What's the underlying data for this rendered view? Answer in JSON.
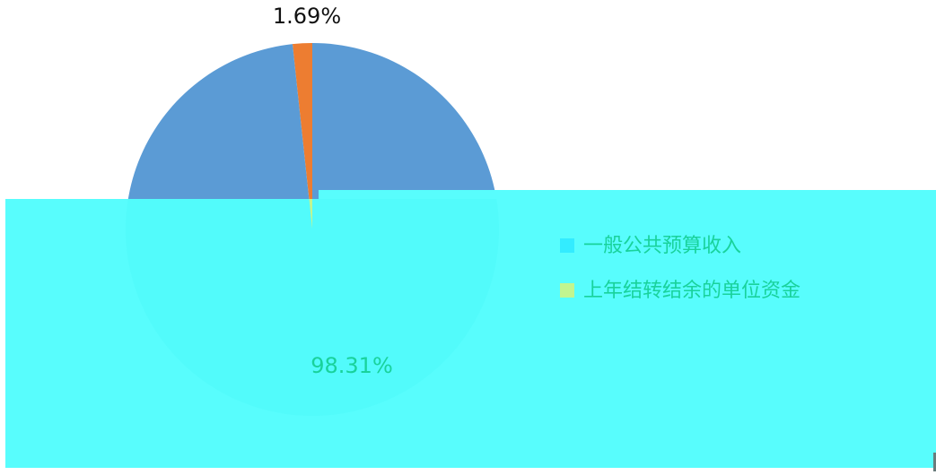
{
  "chart_data": {
    "type": "pie",
    "slices": [
      {
        "name": "一般公共预算收入",
        "value": 98.31,
        "label": "98.31%",
        "color": "#5b9bd5",
        "masked_color": "#4ff9f9"
      },
      {
        "name": "上年结转结余的单位资金",
        "value": 1.69,
        "label": "1.69%",
        "color": "#ed7d31",
        "masked_color": "#c2f58f"
      }
    ],
    "legend": [
      {
        "label": "一般公共预算收入",
        "color": "#33ecff"
      },
      {
        "label": "上年结转结余的单位资金",
        "color": "#c2f58f"
      }
    ],
    "legend_text_color": "#19d29b",
    "legend_position": "right"
  },
  "overlay": {
    "color": "#58fdfd",
    "border_color": "#4aeeee"
  }
}
